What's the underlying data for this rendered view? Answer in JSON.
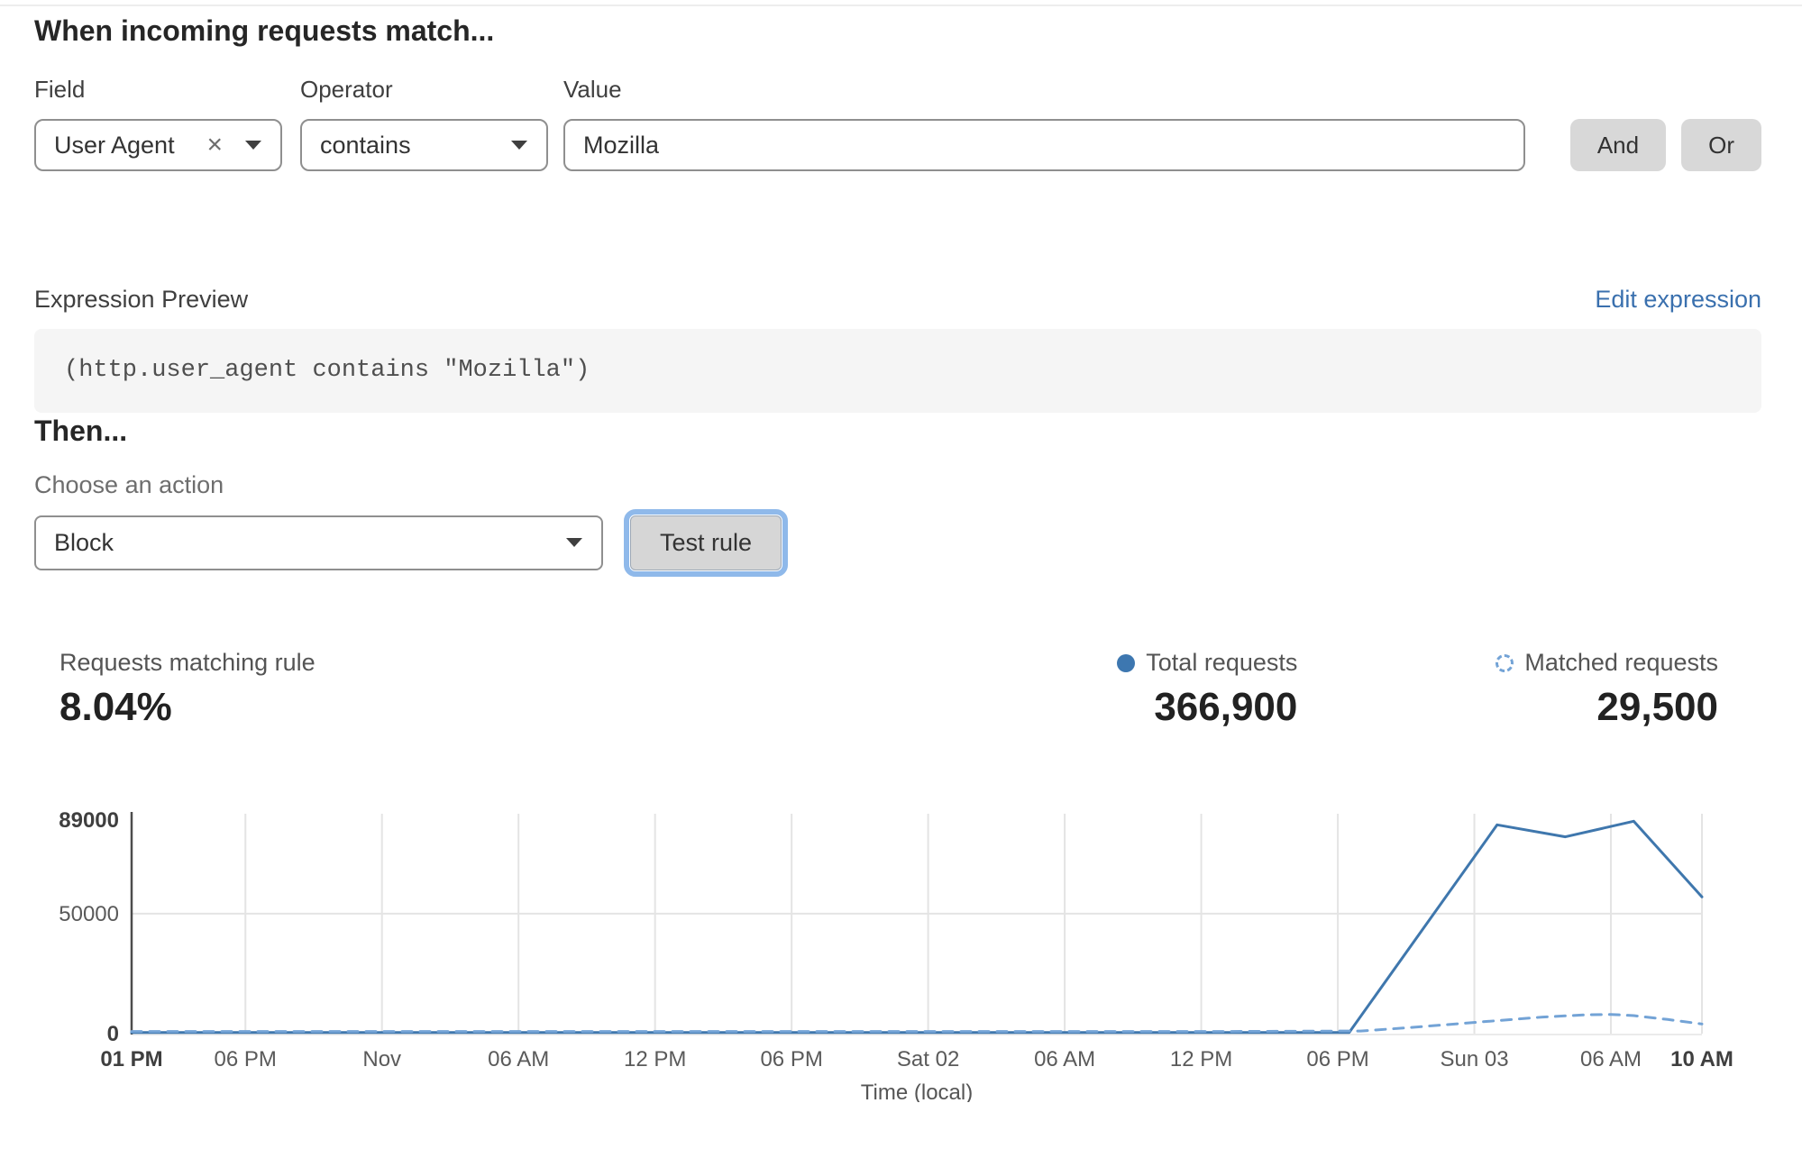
{
  "rule_builder": {
    "heading": "When incoming requests match...",
    "field": {
      "label": "Field",
      "value": "User Agent"
    },
    "operator": {
      "label": "Operator",
      "value": "contains"
    },
    "value": {
      "label": "Value",
      "value": "Mozilla"
    },
    "and_label": "And",
    "or_label": "Or"
  },
  "expression": {
    "label": "Expression Preview",
    "edit_link": "Edit expression",
    "code": "(http.user_agent contains \"Mozilla\")"
  },
  "action": {
    "heading": "Then...",
    "choose_label": "Choose an action",
    "selected": "Block",
    "test_button": "Test rule"
  },
  "stats": {
    "match_label": "Requests matching rule",
    "match_value": "8.04%",
    "total_label": "Total requests",
    "total_value": "366,900",
    "matched_label": "Matched requests",
    "matched_value": "29,500"
  },
  "colors": {
    "accent_blue": "#3f77ad",
    "dashed_blue": "#73a3d6",
    "link_blue": "#3a70ae",
    "grid_gray": "#e4e4e4",
    "axis_gray": "#4c4c4c"
  },
  "chart_data": {
    "type": "line",
    "title": "",
    "xlabel": "Time (local)",
    "ylabel": "",
    "ylim": [
      0,
      89000
    ],
    "x_hours_span": 69,
    "grid": true,
    "legend_position": "top-right",
    "yticks": [
      {
        "value": 0,
        "label": "0",
        "bold": true
      },
      {
        "value": 50000,
        "label": "50000",
        "bold": false
      },
      {
        "value": 89000,
        "label": "89000",
        "bold": true
      }
    ],
    "xticks": [
      {
        "h": 0,
        "label": "01 PM",
        "bold": true
      },
      {
        "h": 5,
        "label": "06 PM",
        "bold": false
      },
      {
        "h": 11,
        "label": "Nov",
        "bold": false
      },
      {
        "h": 17,
        "label": "06 AM",
        "bold": false
      },
      {
        "h": 23,
        "label": "12 PM",
        "bold": false
      },
      {
        "h": 29,
        "label": "06 PM",
        "bold": false
      },
      {
        "h": 35,
        "label": "Sat 02",
        "bold": false
      },
      {
        "h": 41,
        "label": "06 AM",
        "bold": false
      },
      {
        "h": 47,
        "label": "12 PM",
        "bold": false
      },
      {
        "h": 53,
        "label": "06 PM",
        "bold": false
      },
      {
        "h": 59,
        "label": "Sun 03",
        "bold": false
      },
      {
        "h": 65,
        "label": "06 AM",
        "bold": false
      },
      {
        "h": 69,
        "label": "10 AM",
        "bold": true
      }
    ],
    "series": [
      {
        "name": "Total requests",
        "style": "solid",
        "color": "#3f77ad",
        "points": [
          [
            0,
            500
          ],
          [
            6,
            500
          ],
          [
            12,
            500
          ],
          [
            18,
            500
          ],
          [
            24,
            500
          ],
          [
            30,
            500
          ],
          [
            36,
            500
          ],
          [
            42,
            500
          ],
          [
            48,
            500
          ],
          [
            53.5,
            500
          ],
          [
            60,
            87000
          ],
          [
            63,
            82000
          ],
          [
            66,
            88500
          ],
          [
            69,
            57000
          ]
        ]
      },
      {
        "name": "Matched requests",
        "style": "dashed",
        "color": "#73a3d6",
        "points": [
          [
            0,
            900
          ],
          [
            8,
            900
          ],
          [
            16,
            900
          ],
          [
            24,
            900
          ],
          [
            32,
            900
          ],
          [
            40,
            900
          ],
          [
            48,
            900
          ],
          [
            54,
            1100
          ],
          [
            56,
            2400
          ],
          [
            58,
            3900
          ],
          [
            60,
            5400
          ],
          [
            62,
            6900
          ],
          [
            64,
            7900
          ],
          [
            65,
            8000
          ],
          [
            66,
            7500
          ],
          [
            67.5,
            5900
          ],
          [
            69,
            4000
          ]
        ]
      }
    ]
  }
}
